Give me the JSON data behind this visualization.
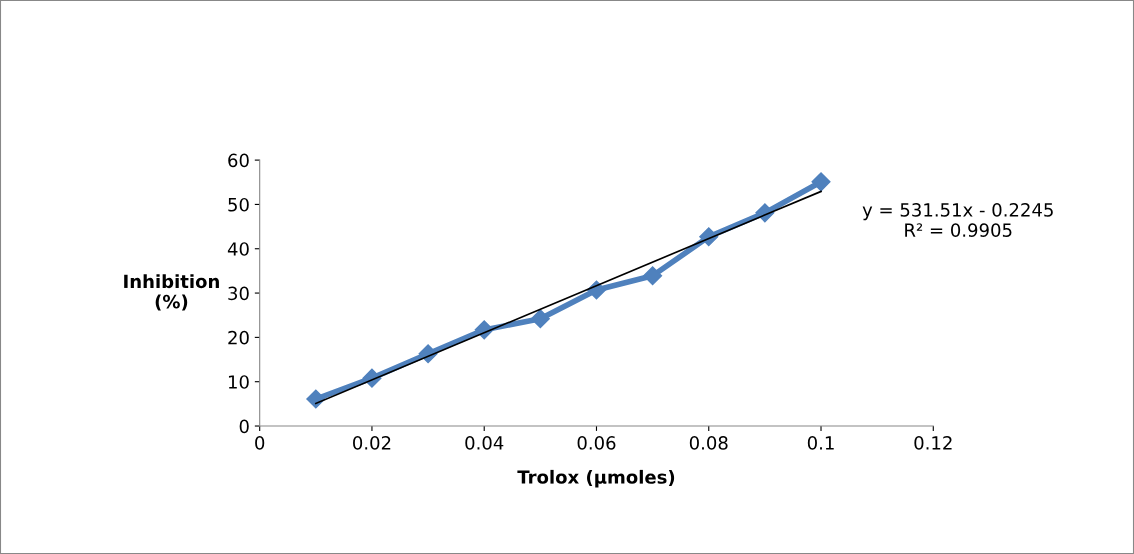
{
  "chart_data": {
    "type": "line",
    "xlabel": "Trolox (µmoles)",
    "ylabel": "Inhibition\n(%)",
    "xlim": [
      0,
      0.12
    ],
    "xticks": [
      0,
      0.02,
      0.04,
      0.06,
      0.08,
      0.1,
      0.12
    ],
    "ylim": [
      0,
      60
    ],
    "yticks": [
      0,
      10,
      20,
      30,
      40,
      50,
      60
    ],
    "grid": false,
    "legend": false,
    "marker": "diamond",
    "line_style": "solid",
    "series": [
      {
        "color": "#4f81bd",
        "x": [
          0.01,
          0.02,
          0.03,
          0.04,
          0.05,
          0.06,
          0.07,
          0.08,
          0.09,
          0.1
        ],
        "values": [
          6.1,
          10.8,
          16.3,
          21.7,
          24.2,
          30.7,
          33.9,
          42.7,
          48.1,
          55.1
        ]
      },
      {
        "type": "line",
        "color": "#000000",
        "marker": "none",
        "x": [
          0.01,
          0.1
        ],
        "values": [
          5.09,
          52.93
        ]
      }
    ],
    "annotations": [
      "y = 531.51x - 0.2245\nR² = 0.9905"
    ]
  }
}
